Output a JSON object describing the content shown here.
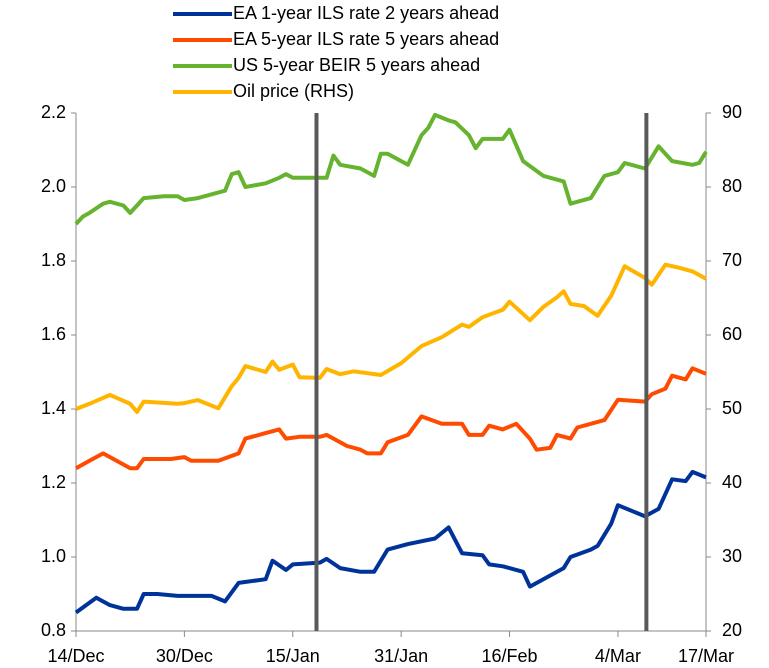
{
  "chart_data": {
    "type": "line",
    "series": [
      {
        "name": "EA 1-year ILS rate 2 years ahead",
        "color": "#003399",
        "axis": "y",
        "x": [
          0,
          3,
          5,
          7,
          9,
          10,
          12,
          15,
          20,
          22,
          24,
          28,
          29,
          31,
          32,
          36,
          37,
          39,
          42,
          44,
          46,
          49,
          53,
          55,
          57,
          60,
          61,
          63,
          66,
          67,
          70,
          72,
          73,
          76,
          77,
          79,
          80,
          84,
          86,
          88,
          90,
          91,
          93
        ],
        "values": [
          0.85,
          0.89,
          0.87,
          0.86,
          0.86,
          0.9,
          0.9,
          0.895,
          0.895,
          0.88,
          0.93,
          0.94,
          0.99,
          0.965,
          0.98,
          0.985,
          0.995,
          0.97,
          0.96,
          0.96,
          1.02,
          1.035,
          1.05,
          1.08,
          1.01,
          1.005,
          0.98,
          0.975,
          0.96,
          0.92,
          0.95,
          0.97,
          1.0,
          1.02,
          1.03,
          1.09,
          1.14,
          1.11,
          1.13,
          1.21,
          1.205,
          1.23,
          1.215
        ]
      },
      {
        "name": "EA 5-year ILS rate 5 years ahead",
        "color": "#ff4b00",
        "axis": "y",
        "x": [
          0,
          2,
          4,
          6,
          8,
          9,
          10,
          14,
          16,
          17,
          21,
          24,
          25,
          28,
          30,
          31,
          33,
          36,
          37,
          40,
          42,
          43,
          45,
          46,
          49,
          51,
          54,
          57,
          58,
          60,
          61,
          63,
          65,
          67,
          68,
          70,
          71,
          73,
          74,
          76,
          78,
          80,
          84,
          85,
          87,
          88,
          90,
          91,
          93
        ],
        "values": [
          1.24,
          1.26,
          1.28,
          1.26,
          1.24,
          1.24,
          1.265,
          1.265,
          1.27,
          1.26,
          1.26,
          1.28,
          1.32,
          1.335,
          1.345,
          1.32,
          1.325,
          1.325,
          1.33,
          1.3,
          1.29,
          1.28,
          1.28,
          1.31,
          1.33,
          1.38,
          1.36,
          1.36,
          1.33,
          1.33,
          1.355,
          1.345,
          1.36,
          1.32,
          1.29,
          1.295,
          1.33,
          1.32,
          1.35,
          1.36,
          1.37,
          1.425,
          1.42,
          1.44,
          1.455,
          1.49,
          1.48,
          1.51,
          1.495
        ]
      },
      {
        "name": "US 5-year BEIR 5 years ahead",
        "color": "#65b32e",
        "axis": "y",
        "x": [
          0,
          1,
          2,
          4,
          5,
          7,
          8,
          10,
          13,
          15,
          16,
          18,
          22,
          23,
          24,
          25,
          28,
          30,
          31,
          32,
          35,
          37,
          38,
          39,
          42,
          44,
          45,
          46,
          49,
          51,
          52,
          53,
          55,
          56,
          58,
          59,
          60,
          63,
          64,
          66,
          69,
          72,
          73,
          76,
          78,
          80,
          81,
          84,
          86,
          88,
          91,
          92,
          93
        ],
        "values": [
          1.9,
          1.92,
          1.93,
          1.955,
          1.96,
          1.95,
          1.93,
          1.97,
          1.975,
          1.975,
          1.965,
          1.97,
          1.99,
          2.035,
          2.04,
          2.0,
          2.01,
          2.025,
          2.035,
          2.025,
          2.025,
          2.025,
          2.085,
          2.06,
          2.05,
          2.03,
          2.09,
          2.09,
          2.06,
          2.14,
          2.16,
          2.195,
          2.18,
          2.175,
          2.14,
          2.105,
          2.13,
          2.13,
          2.155,
          2.07,
          2.03,
          2.015,
          1.955,
          1.97,
          2.03,
          2.04,
          2.065,
          2.05,
          2.11,
          2.07,
          2.06,
          2.065,
          2.095
        ]
      },
      {
        "name": "Oil price (RHS)",
        "color": "#ffb400",
        "axis": "y2",
        "x": [
          0,
          2,
          5,
          8,
          9,
          10,
          15,
          16,
          18,
          21,
          23,
          24,
          25,
          28,
          29,
          30,
          32,
          33,
          36,
          37,
          39,
          41,
          45,
          48,
          51,
          54,
          57,
          58,
          60,
          63,
          64,
          67,
          69,
          71,
          72,
          73,
          75,
          77,
          79,
          81,
          84,
          85,
          87,
          89,
          91,
          93
        ],
        "values": [
          50,
          50.7,
          51.9,
          50.7,
          49.6,
          51,
          50.7,
          50.8,
          51.2,
          50.1,
          53.1,
          54.2,
          55.8,
          55,
          56.4,
          55.3,
          56,
          54.3,
          54.2,
          55.4,
          54.7,
          55.1,
          54.6,
          56.2,
          58.5,
          59.7,
          61.4,
          61.1,
          62.4,
          63.4,
          64.5,
          62,
          63.8,
          65.1,
          65.9,
          64.2,
          63.9,
          62.6,
          65.3,
          69.3,
          67.7,
          66.8,
          69.5,
          69.1,
          68.6,
          67.6
        ]
      }
    ],
    "xlim": [
      0,
      93
    ],
    "xticks": [
      {
        "value": 0,
        "label": "14/Dec"
      },
      {
        "value": 16,
        "label": "30/Dec"
      },
      {
        "value": 32,
        "label": "15/Jan"
      },
      {
        "value": 48,
        "label": "31/Jan"
      },
      {
        "value": 64,
        "label": "16/Feb"
      },
      {
        "value": 80,
        "label": "4/Mar"
      },
      {
        "value": 93,
        "label": "17/Mar"
      }
    ],
    "ylim": [
      0.8,
      2.2
    ],
    "yticks": [
      0.8,
      {
        "value": 1,
        "label": "1.0"
      },
      1.2,
      1.4,
      1.6,
      1.8,
      {
        "value": 2,
        "label": "2.0"
      },
      2.2
    ],
    "y2lim": [
      20,
      90
    ],
    "y2ticks": [
      20,
      30,
      40,
      50,
      60,
      70,
      80,
      90
    ],
    "vertical_lines": [
      35.5,
      84.2
    ],
    "vertical_line_color": "#595959",
    "legend": "top"
  }
}
